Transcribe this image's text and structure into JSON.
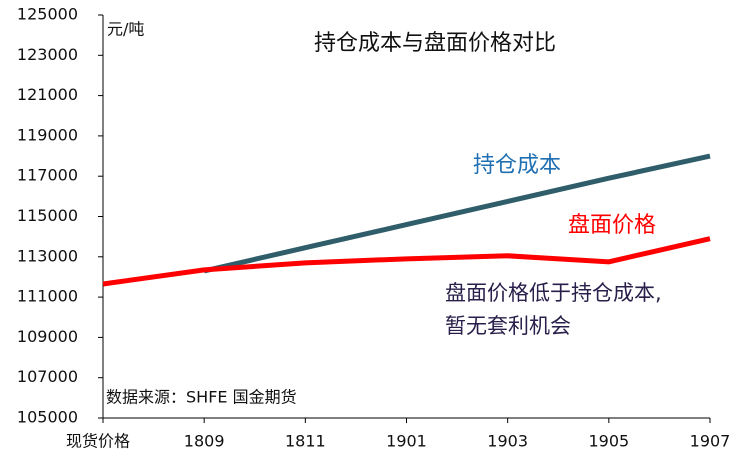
{
  "chart_data": {
    "type": "line",
    "title": "持仓成本与盘面价格对比",
    "y_unit": "元/吨",
    "source": "数据来源：SHFE 国金期货",
    "annotation": [
      "盘面价格低于持仓成本,",
      "暂无套利机会"
    ],
    "categories": [
      "现货价格",
      "1809",
      "1811",
      "1901",
      "1903",
      "1905",
      "1907"
    ],
    "series": [
      {
        "name": "持仓成本",
        "color": "#2f5d6a",
        "label_color": "#1f6fb2",
        "values": [
          null,
          112300,
          113450,
          114600,
          115750,
          116900,
          118000
        ]
      },
      {
        "name": "盘面价格",
        "color": "#ff0000",
        "label_color": "#ff0000",
        "values": [
          111650,
          112350,
          112700,
          112900,
          113050,
          112750,
          113900
        ]
      }
    ],
    "ylim": [
      105000,
      125000
    ],
    "yticks": [
      105000,
      107000,
      109000,
      111000,
      113000,
      115000,
      117000,
      119000,
      121000,
      123000,
      125000
    ]
  }
}
